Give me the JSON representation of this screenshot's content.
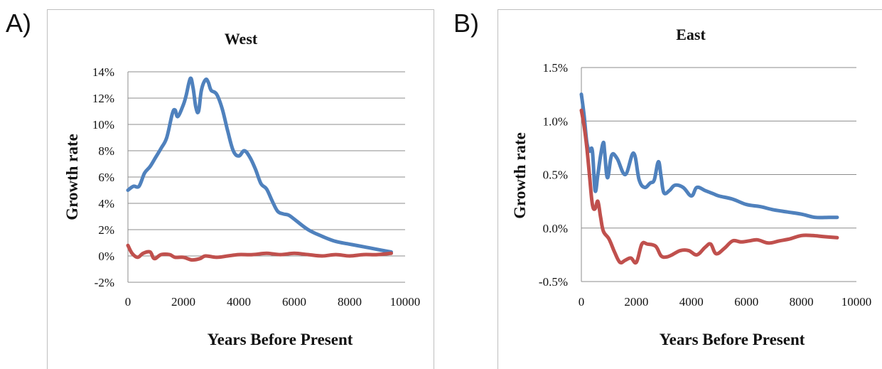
{
  "panels": {
    "a": {
      "letter": "A)"
    },
    "b": {
      "letter": "B)"
    }
  },
  "chart_data": [
    {
      "type": "line",
      "title": "West",
      "xlabel": "Years Before Present",
      "ylabel": "Growth rate",
      "xlim": [
        0,
        10000
      ],
      "ylim": [
        -0.02,
        0.14
      ],
      "x_ticks": [
        0,
        2000,
        4000,
        6000,
        8000,
        10000
      ],
      "x_tick_labels": [
        "0",
        "2000",
        "4000",
        "6000",
        "8000",
        "10000"
      ],
      "y_ticks": [
        -0.02,
        0,
        0.02,
        0.04,
        0.06,
        0.08,
        0.1,
        0.12,
        0.14
      ],
      "y_tick_labels": [
        "-2%",
        "0%",
        "2%",
        "4%",
        "6%",
        "8%",
        "10%",
        "12%",
        "14%"
      ],
      "grid": true,
      "series": [
        {
          "color": "#4f81bd",
          "x": [
            0,
            200,
            400,
            600,
            800,
            1000,
            1200,
            1400,
            1600,
            1700,
            1800,
            2000,
            2100,
            2250,
            2350,
            2450,
            2550,
            2650,
            2800,
            2900,
            3000,
            3200,
            3400,
            3600,
            3800,
            4000,
            4200,
            4400,
            4600,
            4800,
            5000,
            5200,
            5400,
            5600,
            5800,
            6000,
            6500,
            7000,
            7500,
            8000,
            8500,
            9000,
            9500
          ],
          "y": [
            0.05,
            0.053,
            0.053,
            0.063,
            0.068,
            0.075,
            0.082,
            0.09,
            0.108,
            0.111,
            0.106,
            0.115,
            0.122,
            0.135,
            0.128,
            0.113,
            0.11,
            0.126,
            0.134,
            0.132,
            0.126,
            0.123,
            0.112,
            0.095,
            0.08,
            0.076,
            0.08,
            0.075,
            0.066,
            0.055,
            0.051,
            0.042,
            0.034,
            0.032,
            0.031,
            0.028,
            0.02,
            0.015,
            0.011,
            0.009,
            0.007,
            0.005,
            0.003
          ]
        },
        {
          "color": "#c0504d",
          "x": [
            0,
            150,
            350,
            550,
            800,
            950,
            1200,
            1500,
            1700,
            2000,
            2300,
            2600,
            2800,
            3200,
            3600,
            4000,
            4500,
            5000,
            5500,
            6000,
            6500,
            7000,
            7500,
            8000,
            8500,
            9000,
            9500
          ],
          "y": [
            0.008,
            0.002,
            -0.001,
            0.002,
            0.003,
            -0.002,
            0.001,
            0.001,
            -0.001,
            -0.001,
            -0.003,
            -0.002,
            0.0,
            -0.001,
            0.0,
            0.001,
            0.001,
            0.002,
            0.001,
            0.002,
            0.001,
            0.0,
            0.001,
            0.0,
            0.001,
            0.001,
            0.002
          ]
        }
      ]
    },
    {
      "type": "line",
      "title": "East",
      "xlabel": "Years Before Present",
      "ylabel": "Growth rate",
      "xlim": [
        0,
        10000
      ],
      "ylim": [
        -0.005,
        0.015
      ],
      "x_ticks": [
        0,
        2000,
        4000,
        6000,
        8000,
        10000
      ],
      "x_tick_labels": [
        "0",
        "2000",
        "4000",
        "6000",
        "8000",
        "10000"
      ],
      "y_ticks": [
        -0.005,
        0,
        0.005,
        0.01,
        0.015
      ],
      "y_tick_labels": [
        "-0.5%",
        "0.0%",
        "0.5%",
        "1.0%",
        "1.5%"
      ],
      "grid": true,
      "series": [
        {
          "color": "#4f81bd",
          "x": [
            0,
            100,
            200,
            300,
            400,
            500,
            600,
            700,
            800,
            850,
            950,
            1100,
            1300,
            1600,
            1900,
            2100,
            2300,
            2500,
            2650,
            2800,
            2900,
            3000,
            3200,
            3400,
            3700,
            4000,
            4200,
            4500,
            4800,
            5000,
            5500,
            6000,
            6500,
            7000,
            7500,
            8000,
            8500,
            9000,
            9300
          ],
          "y": [
            0.0125,
            0.0105,
            0.008,
            0.0072,
            0.0072,
            0.0035,
            0.005,
            0.0068,
            0.008,
            0.007,
            0.0047,
            0.0068,
            0.0065,
            0.005,
            0.007,
            0.0045,
            0.0038,
            0.0042,
            0.0045,
            0.0062,
            0.0048,
            0.0033,
            0.0035,
            0.004,
            0.0038,
            0.003,
            0.0038,
            0.0035,
            0.0032,
            0.003,
            0.0027,
            0.0022,
            0.002,
            0.0017,
            0.0015,
            0.0013,
            0.001,
            0.001,
            0.001
          ]
        },
        {
          "color": "#c0504d",
          "x": [
            0,
            100,
            200,
            300,
            400,
            500,
            600,
            700,
            800,
            1000,
            1200,
            1400,
            1600,
            1800,
            2000,
            2200,
            2400,
            2700,
            2900,
            3100,
            3300,
            3600,
            3900,
            4200,
            4500,
            4700,
            4900,
            5200,
            5500,
            5800,
            6100,
            6400,
            6800,
            7200,
            7600,
            8000,
            8400,
            8800,
            9300
          ],
          "y": [
            0.011,
            0.0095,
            0.0075,
            0.0048,
            0.0022,
            0.0018,
            0.0025,
            0.001,
            -0.0003,
            -0.001,
            -0.0022,
            -0.0032,
            -0.003,
            -0.0028,
            -0.0032,
            -0.0015,
            -0.0015,
            -0.0017,
            -0.0026,
            -0.0027,
            -0.0025,
            -0.0021,
            -0.0021,
            -0.0025,
            -0.0018,
            -0.0015,
            -0.0024,
            -0.0019,
            -0.0012,
            -0.0013,
            -0.0012,
            -0.0011,
            -0.0014,
            -0.0012,
            -0.001,
            -0.0007,
            -0.0007,
            -0.0008,
            -0.0009
          ]
        }
      ]
    }
  ]
}
